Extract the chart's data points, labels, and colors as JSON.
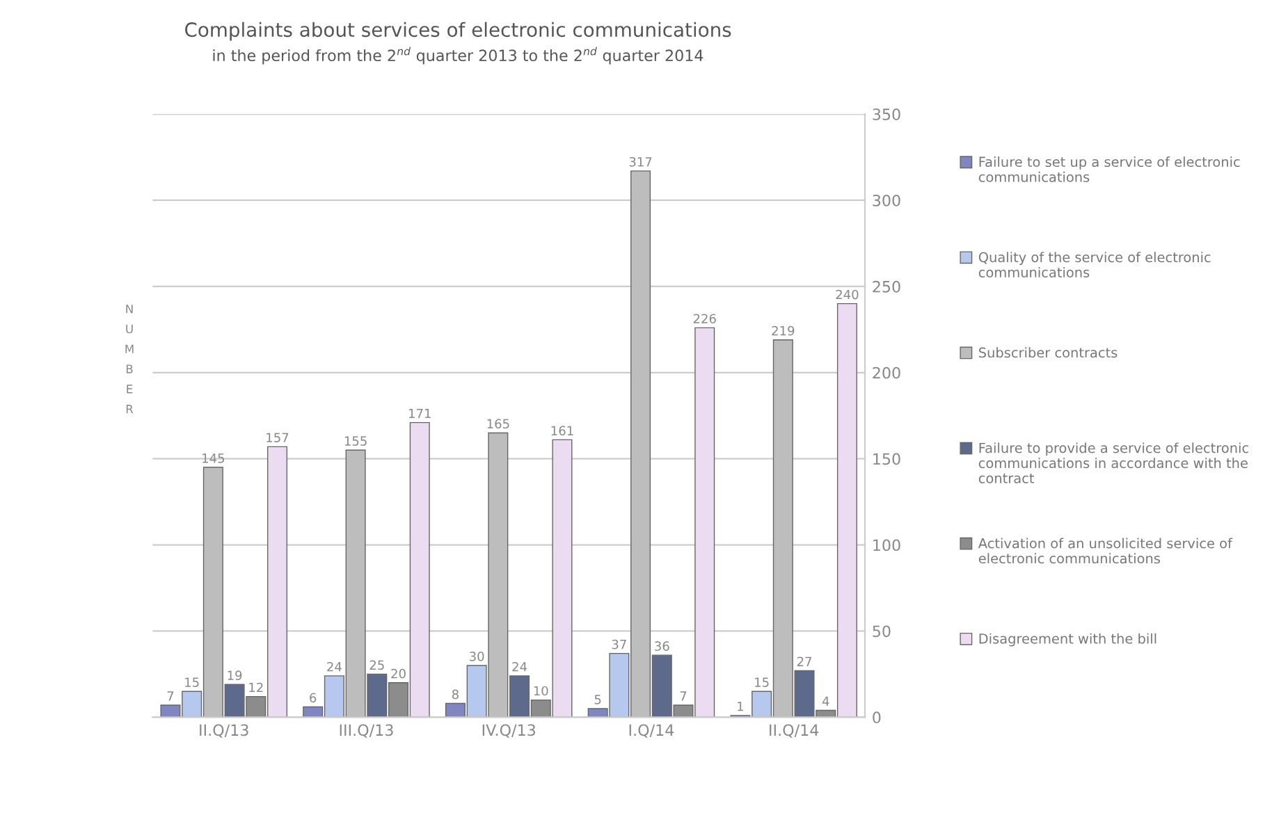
{
  "chart_data": {
    "type": "bar",
    "title": "Complaints about services of electronic communications",
    "subtitle": "in the period from the 2$^{nd}$ quarter 2013 to the 2$^{nd}$ quarter 2014",
    "ylabel": "NUMBER",
    "categories": [
      "II.Q/13",
      "III.Q/13",
      "IV.Q/13",
      "I.Q/14",
      "II.Q/14"
    ],
    "series": [
      {
        "name": "Failure to set up a service of electronic communications",
        "color": "#7f86c0",
        "values": [
          7,
          6,
          8,
          5,
          1
        ]
      },
      {
        "name": "Quality of the service of electronic communications",
        "color": "#b7c8ee",
        "values": [
          15,
          24,
          30,
          37,
          15
        ]
      },
      {
        "name": "Subscriber contracts",
        "color": "#bdbdbd",
        "values": [
          145,
          155,
          165,
          317,
          219
        ]
      },
      {
        "name": "Failure to provide a service of electronic communications in accordance with the contract",
        "color": "#5e6a8c",
        "values": [
          19,
          25,
          24,
          36,
          27
        ]
      },
      {
        "name": "Activation of an unsolicited service of electronic communications",
        "color": "#8c8c8c",
        "values": [
          12,
          20,
          10,
          7,
          4
        ]
      },
      {
        "name": "Disagreement with the bill",
        "color": "#ecdcf2",
        "values": [
          157,
          171,
          161,
          226,
          240
        ]
      }
    ],
    "ylim": [
      0,
      350
    ],
    "yticks": [
      0,
      50,
      100,
      150,
      200,
      250,
      300,
      350
    ],
    "grid": "y",
    "legend": "right",
    "data_labels": true
  }
}
